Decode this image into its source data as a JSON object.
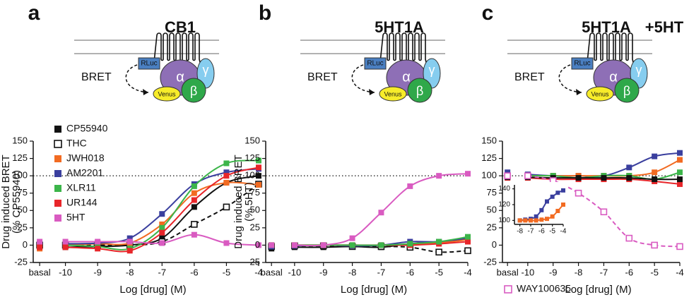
{
  "chart_data": [
    {
      "type": "line",
      "panel": "a",
      "receptor": "CB1",
      "diagram": {
        "bret": "BRET",
        "rluc": "RLuc",
        "alpha": "α",
        "beta": "β",
        "gamma": "γ",
        "venus": "Venus"
      },
      "xlabel": "Log [drug] (M)",
      "ylabel": [
        "Drug induced BRET",
        "(% CP55940)"
      ],
      "xlim": [
        -11,
        -4
      ],
      "xticks": [
        {
          "value": -10.8,
          "label": "basal"
        },
        -10,
        -9,
        -8,
        -7,
        -6,
        -5,
        -4
      ],
      "ylim": [
        -25,
        150
      ],
      "yticks": [
        -25,
        0,
        25,
        50,
        75,
        100,
        125,
        150
      ],
      "hline": 100,
      "legend": "upper left",
      "x": [
        -10.8,
        -10,
        -9,
        -8,
        -7,
        -6,
        -5,
        -4
      ],
      "series": [
        {
          "name": "CP55940",
          "color": "#111111",
          "filled": true,
          "dash": false,
          "values": [
            -2,
            -3,
            -2,
            0,
            10,
            55,
            90,
            100
          ]
        },
        {
          "name": "THC",
          "color": "#111111",
          "filled": false,
          "dash": true,
          "values": [
            0,
            0,
            0,
            0,
            5,
            30,
            55,
            88
          ]
        },
        {
          "name": "JWH018",
          "color": "#f26b22",
          "filled": true,
          "dash": false,
          "values": [
            -5,
            0,
            2,
            3,
            30,
            75,
            90,
            87
          ]
        },
        {
          "name": "AM2201",
          "color": "#3a3f9e",
          "filled": true,
          "dash": false,
          "values": [
            2,
            2,
            3,
            10,
            45,
            88,
            105,
            110
          ]
        },
        {
          "name": "XLR11",
          "color": "#3cb54a",
          "filled": true,
          "dash": false,
          "values": [
            0,
            0,
            -2,
            -5,
            25,
            85,
            118,
            122
          ]
        },
        {
          "name": "UR144",
          "color": "#e8262a",
          "filled": true,
          "dash": false,
          "values": [
            -3,
            -3,
            -5,
            -8,
            18,
            65,
            100,
            112
          ]
        },
        {
          "name": "5HT",
          "color": "#d95bc1",
          "filled": true,
          "dash": false,
          "values": [
            5,
            5,
            5,
            5,
            3,
            15,
            3,
            0
          ]
        }
      ]
    },
    {
      "type": "line",
      "panel": "b",
      "receptor": "5HT1A",
      "diagram": {
        "bret": "BRET",
        "rluc": "RLuc",
        "alpha": "α",
        "beta": "β",
        "gamma": "γ",
        "venus": "Venus"
      },
      "xlabel": "Log [drug] (M)",
      "ylabel": [
        "Drug induced BRET",
        "(% 5HT)"
      ],
      "xlim": [
        -11,
        -4
      ],
      "xticks": [
        {
          "value": -10.8,
          "label": "basal"
        },
        -10,
        -9,
        -8,
        -7,
        -6,
        -5,
        -4
      ],
      "ylim": [
        -25,
        150
      ],
      "yticks": [
        -25,
        0,
        25,
        50,
        75,
        100,
        125,
        150
      ],
      "hline": 100,
      "x": [
        -10.8,
        -10,
        -9,
        -8,
        -7,
        -6,
        -5,
        -4
      ],
      "series": [
        {
          "color": "#111111",
          "filled": true,
          "dash": false,
          "values": [
            -5,
            -3,
            -3,
            -2,
            -3,
            2,
            5,
            8
          ]
        },
        {
          "color": "#111111",
          "filled": false,
          "dash": true,
          "values": [
            -2,
            -1,
            -1,
            -2,
            -2,
            -3,
            -10,
            -8
          ]
        },
        {
          "color": "#3a3f9e",
          "filled": true,
          "dash": false,
          "values": [
            -2,
            -1,
            0,
            -1,
            0,
            5,
            5,
            10
          ]
        },
        {
          "color": "#f26b22",
          "filled": true,
          "dash": false,
          "values": [
            0,
            0,
            0,
            0,
            0,
            1,
            3,
            8
          ]
        },
        {
          "color": "#e8262a",
          "filled": true,
          "dash": false,
          "values": [
            0,
            0,
            0,
            0,
            0,
            0,
            2,
            5
          ]
        },
        {
          "color": "#3cb54a",
          "filled": true,
          "dash": false,
          "values": [
            0,
            0,
            0,
            0,
            0,
            2,
            5,
            12
          ]
        },
        {
          "color": "#d95bc1",
          "filled": true,
          "dash": false,
          "values": [
            0,
            0,
            0,
            10,
            47,
            85,
            100,
            103
          ]
        }
      ]
    },
    {
      "type": "line",
      "panel": "c",
      "receptor": "5HT1A",
      "treatment": "+5HT",
      "diagram": {
        "bret": "BRET",
        "rluc": "RLuc",
        "alpha": "α",
        "beta": "β",
        "gamma": "γ",
        "venus": "Venus"
      },
      "xlabel": "Log [drug] (M)",
      "xlim": [
        -11,
        -4
      ],
      "xticks": [
        {
          "value": -10.8,
          "label": "basal"
        },
        -10,
        -9,
        -8,
        -7,
        -6,
        -5,
        -4
      ],
      "ylim": [
        -25,
        150
      ],
      "yticks": [
        -25,
        0,
        25,
        50,
        75,
        100,
        125,
        150
      ],
      "hline": 100,
      "legend": "lower left",
      "x": [
        -10.8,
        -10,
        -9,
        -8,
        -7,
        -6,
        -5,
        -4
      ],
      "series": [
        {
          "color": "#3a3f9e",
          "filled": true,
          "dash": false,
          "values": [
            105,
            102,
            100,
            100,
            100,
            112,
            128,
            133
          ]
        },
        {
          "color": "#f26b22",
          "filled": true,
          "dash": false,
          "values": [
            100,
            100,
            100,
            100,
            100,
            100,
            105,
            123
          ]
        },
        {
          "color": "#3cb54a",
          "filled": true,
          "dash": false,
          "values": [
            100,
            100,
            100,
            97,
            100,
            100,
            95,
            105
          ]
        },
        {
          "color": "#e8262a",
          "filled": true,
          "dash": false,
          "values": [
            97,
            97,
            95,
            95,
            95,
            95,
            92,
            88
          ]
        },
        {
          "color": "#111111",
          "filled": true,
          "dash": false,
          "values": [
            98,
            98,
            97,
            97,
            97,
            97,
            95,
            95
          ]
        },
        {
          "name": "WAY100635",
          "color": "#d95bc1",
          "filled": false,
          "dash": true,
          "values": [
            100,
            100,
            93,
            75,
            48,
            10,
            0,
            -2
          ]
        }
      ]
    },
    {
      "type": "line",
      "inset": true,
      "xlim": [
        -8.5,
        -4
      ],
      "xticks": [
        -8,
        -7,
        -6,
        -5,
        -4
      ],
      "ylim": [
        95,
        145
      ],
      "yticks": [
        100,
        120,
        140
      ],
      "x": [
        -8,
        -7.5,
        -7,
        -6.5,
        -6,
        -5.5,
        -5,
        -4.5,
        -4
      ],
      "series": [
        {
          "color": "#3a3f9e",
          "filled": true,
          "dash": false,
          "values": [
            100,
            101,
            102,
            105,
            113,
            124,
            130,
            135,
            138
          ]
        },
        {
          "color": "#f26b22",
          "filled": true,
          "dash": false,
          "values": [
            100,
            100,
            100,
            100,
            101,
            102,
            105,
            112,
            120
          ]
        }
      ]
    }
  ]
}
